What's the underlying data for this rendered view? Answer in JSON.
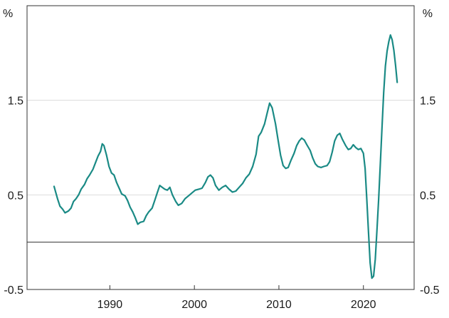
{
  "chart_data": {
    "type": "line",
    "title": "",
    "xlabel": "",
    "ylabel": "%",
    "y_unit_left": "%",
    "y_unit_right": "%",
    "xlim": [
      1980.2,
      2026.0
    ],
    "ylim": [
      -0.5,
      2.5
    ],
    "x_ticks": [
      1990,
      2000,
      2010,
      2020
    ],
    "y_ticks": [
      -0.5,
      0.5,
      1.5
    ],
    "y_tick_labels": [
      "-0.5",
      "0.5",
      "1.5"
    ],
    "grid": true,
    "zero_line": 0,
    "series": [
      {
        "color": "#1a8a85",
        "points": [
          [
            1983.4,
            0.59
          ],
          [
            1983.8,
            0.46
          ],
          [
            1984.1,
            0.38
          ],
          [
            1984.4,
            0.35
          ],
          [
            1984.7,
            0.31
          ],
          [
            1985.1,
            0.33
          ],
          [
            1985.4,
            0.36
          ],
          [
            1985.7,
            0.43
          ],
          [
            1986.0,
            0.46
          ],
          [
            1986.3,
            0.5
          ],
          [
            1986.6,
            0.56
          ],
          [
            1987.0,
            0.61
          ],
          [
            1987.3,
            0.67
          ],
          [
            1987.6,
            0.71
          ],
          [
            1988.0,
            0.77
          ],
          [
            1988.3,
            0.84
          ],
          [
            1988.6,
            0.91
          ],
          [
            1988.9,
            0.96
          ],
          [
            1989.1,
            1.04
          ],
          [
            1989.3,
            1.02
          ],
          [
            1989.6,
            0.92
          ],
          [
            1989.9,
            0.8
          ],
          [
            1990.2,
            0.73
          ],
          [
            1990.5,
            0.71
          ],
          [
            1990.8,
            0.63
          ],
          [
            1991.1,
            0.57
          ],
          [
            1991.4,
            0.51
          ],
          [
            1991.8,
            0.49
          ],
          [
            1992.1,
            0.44
          ],
          [
            1992.4,
            0.37
          ],
          [
            1992.7,
            0.32
          ],
          [
            1993.0,
            0.26
          ],
          [
            1993.3,
            0.19
          ],
          [
            1993.6,
            0.21
          ],
          [
            1994.0,
            0.22
          ],
          [
            1994.3,
            0.28
          ],
          [
            1994.6,
            0.32
          ],
          [
            1995.0,
            0.36
          ],
          [
            1995.3,
            0.44
          ],
          [
            1995.6,
            0.52
          ],
          [
            1995.9,
            0.6
          ],
          [
            1996.2,
            0.58
          ],
          [
            1996.5,
            0.56
          ],
          [
            1996.8,
            0.55
          ],
          [
            1997.1,
            0.58
          ],
          [
            1997.4,
            0.5
          ],
          [
            1997.8,
            0.43
          ],
          [
            1998.1,
            0.39
          ],
          [
            1998.5,
            0.41
          ],
          [
            1998.9,
            0.46
          ],
          [
            1999.3,
            0.49
          ],
          [
            1999.7,
            0.52
          ],
          [
            2000.1,
            0.55
          ],
          [
            2000.5,
            0.56
          ],
          [
            2000.9,
            0.57
          ],
          [
            2001.3,
            0.63
          ],
          [
            2001.6,
            0.69
          ],
          [
            2001.9,
            0.71
          ],
          [
            2002.2,
            0.68
          ],
          [
            2002.5,
            0.6
          ],
          [
            2002.9,
            0.55
          ],
          [
            2003.3,
            0.58
          ],
          [
            2003.7,
            0.6
          ],
          [
            2004.1,
            0.56
          ],
          [
            2004.5,
            0.53
          ],
          [
            2004.9,
            0.54
          ],
          [
            2005.3,
            0.58
          ],
          [
            2005.7,
            0.62
          ],
          [
            2006.1,
            0.68
          ],
          [
            2006.5,
            0.72
          ],
          [
            2006.9,
            0.8
          ],
          [
            2007.3,
            0.93
          ],
          [
            2007.6,
            1.12
          ],
          [
            2007.9,
            1.16
          ],
          [
            2008.3,
            1.25
          ],
          [
            2008.6,
            1.36
          ],
          [
            2008.9,
            1.47
          ],
          [
            2009.2,
            1.42
          ],
          [
            2009.6,
            1.25
          ],
          [
            2009.9,
            1.08
          ],
          [
            2010.2,
            0.92
          ],
          [
            2010.5,
            0.81
          ],
          [
            2010.8,
            0.78
          ],
          [
            2011.1,
            0.79
          ],
          [
            2011.4,
            0.86
          ],
          [
            2011.8,
            0.94
          ],
          [
            2012.1,
            1.02
          ],
          [
            2012.4,
            1.07
          ],
          [
            2012.7,
            1.1
          ],
          [
            2013.0,
            1.08
          ],
          [
            2013.3,
            1.03
          ],
          [
            2013.7,
            0.97
          ],
          [
            2014.0,
            0.89
          ],
          [
            2014.3,
            0.83
          ],
          [
            2014.6,
            0.8
          ],
          [
            2015.0,
            0.79
          ],
          [
            2015.3,
            0.8
          ],
          [
            2015.7,
            0.81
          ],
          [
            2016.0,
            0.85
          ],
          [
            2016.3,
            0.95
          ],
          [
            2016.6,
            1.07
          ],
          [
            2016.9,
            1.13
          ],
          [
            2017.2,
            1.15
          ],
          [
            2017.5,
            1.09
          ],
          [
            2017.9,
            1.02
          ],
          [
            2018.2,
            0.98
          ],
          [
            2018.5,
            0.99
          ],
          [
            2018.8,
            1.03
          ],
          [
            2019.1,
            1.0
          ],
          [
            2019.4,
            0.98
          ],
          [
            2019.7,
            0.99
          ],
          [
            2020.0,
            0.94
          ],
          [
            2020.2,
            0.78
          ],
          [
            2020.4,
            0.45
          ],
          [
            2020.6,
            0.1
          ],
          [
            2020.8,
            -0.22
          ],
          [
            2021.0,
            -0.38
          ],
          [
            2021.2,
            -0.36
          ],
          [
            2021.4,
            -0.18
          ],
          [
            2021.6,
            0.12
          ],
          [
            2021.8,
            0.45
          ],
          [
            2022.0,
            0.83
          ],
          [
            2022.2,
            1.22
          ],
          [
            2022.4,
            1.58
          ],
          [
            2022.6,
            1.86
          ],
          [
            2022.8,
            2.02
          ],
          [
            2023.0,
            2.12
          ],
          [
            2023.2,
            2.19
          ],
          [
            2023.4,
            2.14
          ],
          [
            2023.6,
            2.03
          ],
          [
            2023.8,
            1.87
          ],
          [
            2024.0,
            1.69
          ]
        ]
      }
    ]
  }
}
